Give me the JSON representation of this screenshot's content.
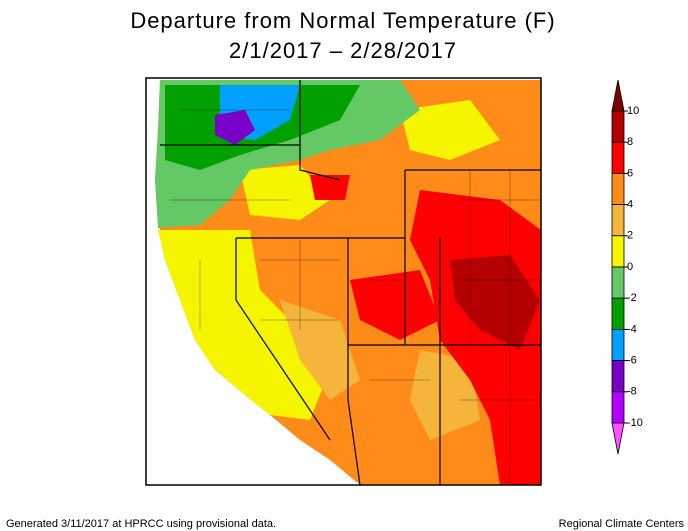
{
  "header": {
    "title": "Departure from Normal Temperature (F)",
    "subtitle": "2/1/2017 – 2/28/2017"
  },
  "colorbar": {
    "ticks": [
      10,
      8,
      6,
      4,
      2,
      0,
      -2,
      -4,
      -6,
      -8,
      -10
    ],
    "colors": [
      "#800000",
      "#b40000",
      "#ff0000",
      "#ff8c19",
      "#f5b43c",
      "#f5f500",
      "#64c864",
      "#00a000",
      "#00a0ff",
      "#7800c8",
      "#b400ff",
      "#ff50ff"
    ]
  },
  "footer": {
    "left": "Generated 3/11/2017 at HPRCC using provisional data.",
    "right": "Regional Climate Centers"
  }
}
